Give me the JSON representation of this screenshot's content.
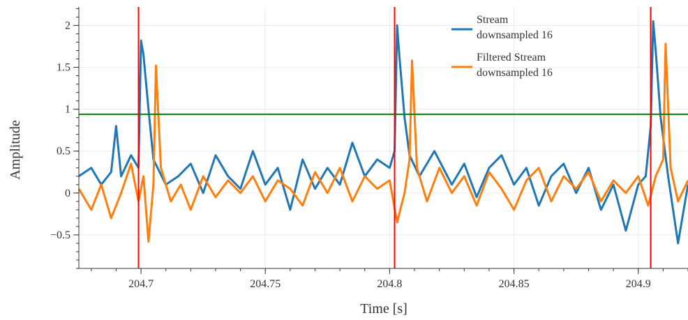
{
  "chart_data": {
    "type": "line",
    "xlabel": "Time [s]",
    "ylabel": "Amplitude",
    "xlim": [
      204.675,
      204.92
    ],
    "ylim": [
      -0.9,
      2.22
    ],
    "xticks": [
      204.7,
      204.75,
      204.8,
      204.85,
      204.9
    ],
    "xtick_labels": [
      "204.7",
      "204.75",
      "204.8",
      "204.85",
      "204.9"
    ],
    "yticks": [
      -0.5,
      0,
      0.5,
      1,
      1.5,
      2
    ],
    "ytick_labels": [
      "−0.5",
      "0",
      "0.5",
      "1",
      "1.5",
      "2"
    ],
    "grid": true,
    "legend": "top-right",
    "threshold": {
      "y": 0.94,
      "color": "#008000"
    },
    "markers": {
      "x": [
        204.699,
        204.802,
        204.905
      ],
      "color": "#ff0000"
    },
    "series": [
      {
        "name": "Stream downsampled 16",
        "legend_lines": [
          "Stream",
          "downsampled 16"
        ],
        "color": "#1f77b4",
        "x": [
          204.675,
          204.68,
          204.684,
          204.688,
          204.69,
          204.692,
          204.696,
          204.699,
          204.7,
          204.701,
          204.703,
          204.705,
          204.71,
          204.715,
          204.72,
          204.725,
          204.73,
          204.735,
          204.74,
          204.745,
          204.75,
          204.755,
          204.76,
          204.765,
          204.77,
          204.775,
          204.78,
          204.785,
          204.79,
          204.795,
          204.8,
          204.802,
          204.803,
          204.804,
          204.806,
          204.808,
          204.812,
          204.818,
          204.825,
          204.83,
          204.835,
          204.84,
          204.845,
          204.85,
          204.855,
          204.86,
          204.865,
          204.87,
          204.875,
          204.88,
          204.885,
          204.89,
          204.895,
          204.9,
          204.903,
          204.905,
          204.906,
          204.907,
          204.909,
          204.912,
          204.916,
          204.92
        ],
        "y": [
          0.2,
          0.3,
          0.1,
          0.25,
          0.8,
          0.2,
          0.45,
          0.3,
          1.82,
          1.65,
          1.0,
          0.4,
          0.1,
          0.2,
          0.35,
          0.0,
          0.45,
          0.2,
          0.05,
          0.5,
          0.1,
          0.3,
          -0.2,
          0.4,
          0.05,
          0.3,
          0.1,
          0.6,
          0.2,
          0.4,
          0.3,
          0.5,
          2.0,
          1.6,
          0.9,
          0.45,
          0.2,
          0.5,
          0.1,
          0.35,
          -0.05,
          0.3,
          0.45,
          0.1,
          0.3,
          -0.15,
          0.2,
          0.35,
          0.0,
          0.3,
          -0.2,
          0.1,
          -0.45,
          0.1,
          0.2,
          0.8,
          2.05,
          1.7,
          0.9,
          0.2,
          -0.6,
          0.1
        ]
      },
      {
        "name": "Filtered Stream downsampled 16",
        "legend_lines": [
          "Filtered Stream",
          "downsampled 16"
        ],
        "color": "#ff7f0e",
        "x": [
          204.675,
          204.68,
          204.684,
          204.688,
          204.692,
          204.696,
          204.699,
          204.701,
          204.703,
          204.705,
          204.706,
          204.708,
          204.712,
          204.716,
          204.72,
          204.725,
          204.73,
          204.735,
          204.74,
          204.745,
          204.75,
          204.755,
          204.76,
          204.765,
          204.77,
          204.775,
          204.78,
          204.785,
          204.79,
          204.795,
          204.8,
          204.803,
          204.806,
          204.808,
          204.809,
          204.811,
          204.815,
          204.82,
          204.825,
          204.83,
          204.835,
          204.84,
          204.845,
          204.85,
          204.855,
          204.86,
          204.865,
          204.87,
          204.875,
          204.88,
          204.885,
          204.89,
          204.895,
          204.9,
          204.904,
          204.907,
          204.91,
          204.911,
          204.913,
          204.916,
          204.92
        ],
        "y": [
          0.05,
          -0.2,
          0.1,
          -0.3,
          0.0,
          0.35,
          -0.1,
          0.2,
          -0.58,
          0.1,
          1.52,
          0.3,
          -0.1,
          0.1,
          -0.2,
          0.2,
          -0.05,
          0.15,
          0.0,
          0.2,
          -0.1,
          0.15,
          0.05,
          -0.15,
          0.25,
          0.0,
          0.3,
          -0.1,
          0.2,
          0.05,
          0.15,
          -0.35,
          0.0,
          0.4,
          1.58,
          0.3,
          -0.1,
          0.3,
          0.0,
          0.2,
          -0.15,
          0.25,
          0.05,
          -0.2,
          0.15,
          0.3,
          -0.1,
          0.2,
          0.05,
          0.25,
          -0.1,
          0.15,
          0.0,
          0.2,
          -0.15,
          0.2,
          0.4,
          1.78,
          0.3,
          -0.1,
          0.15
        ]
      }
    ]
  }
}
